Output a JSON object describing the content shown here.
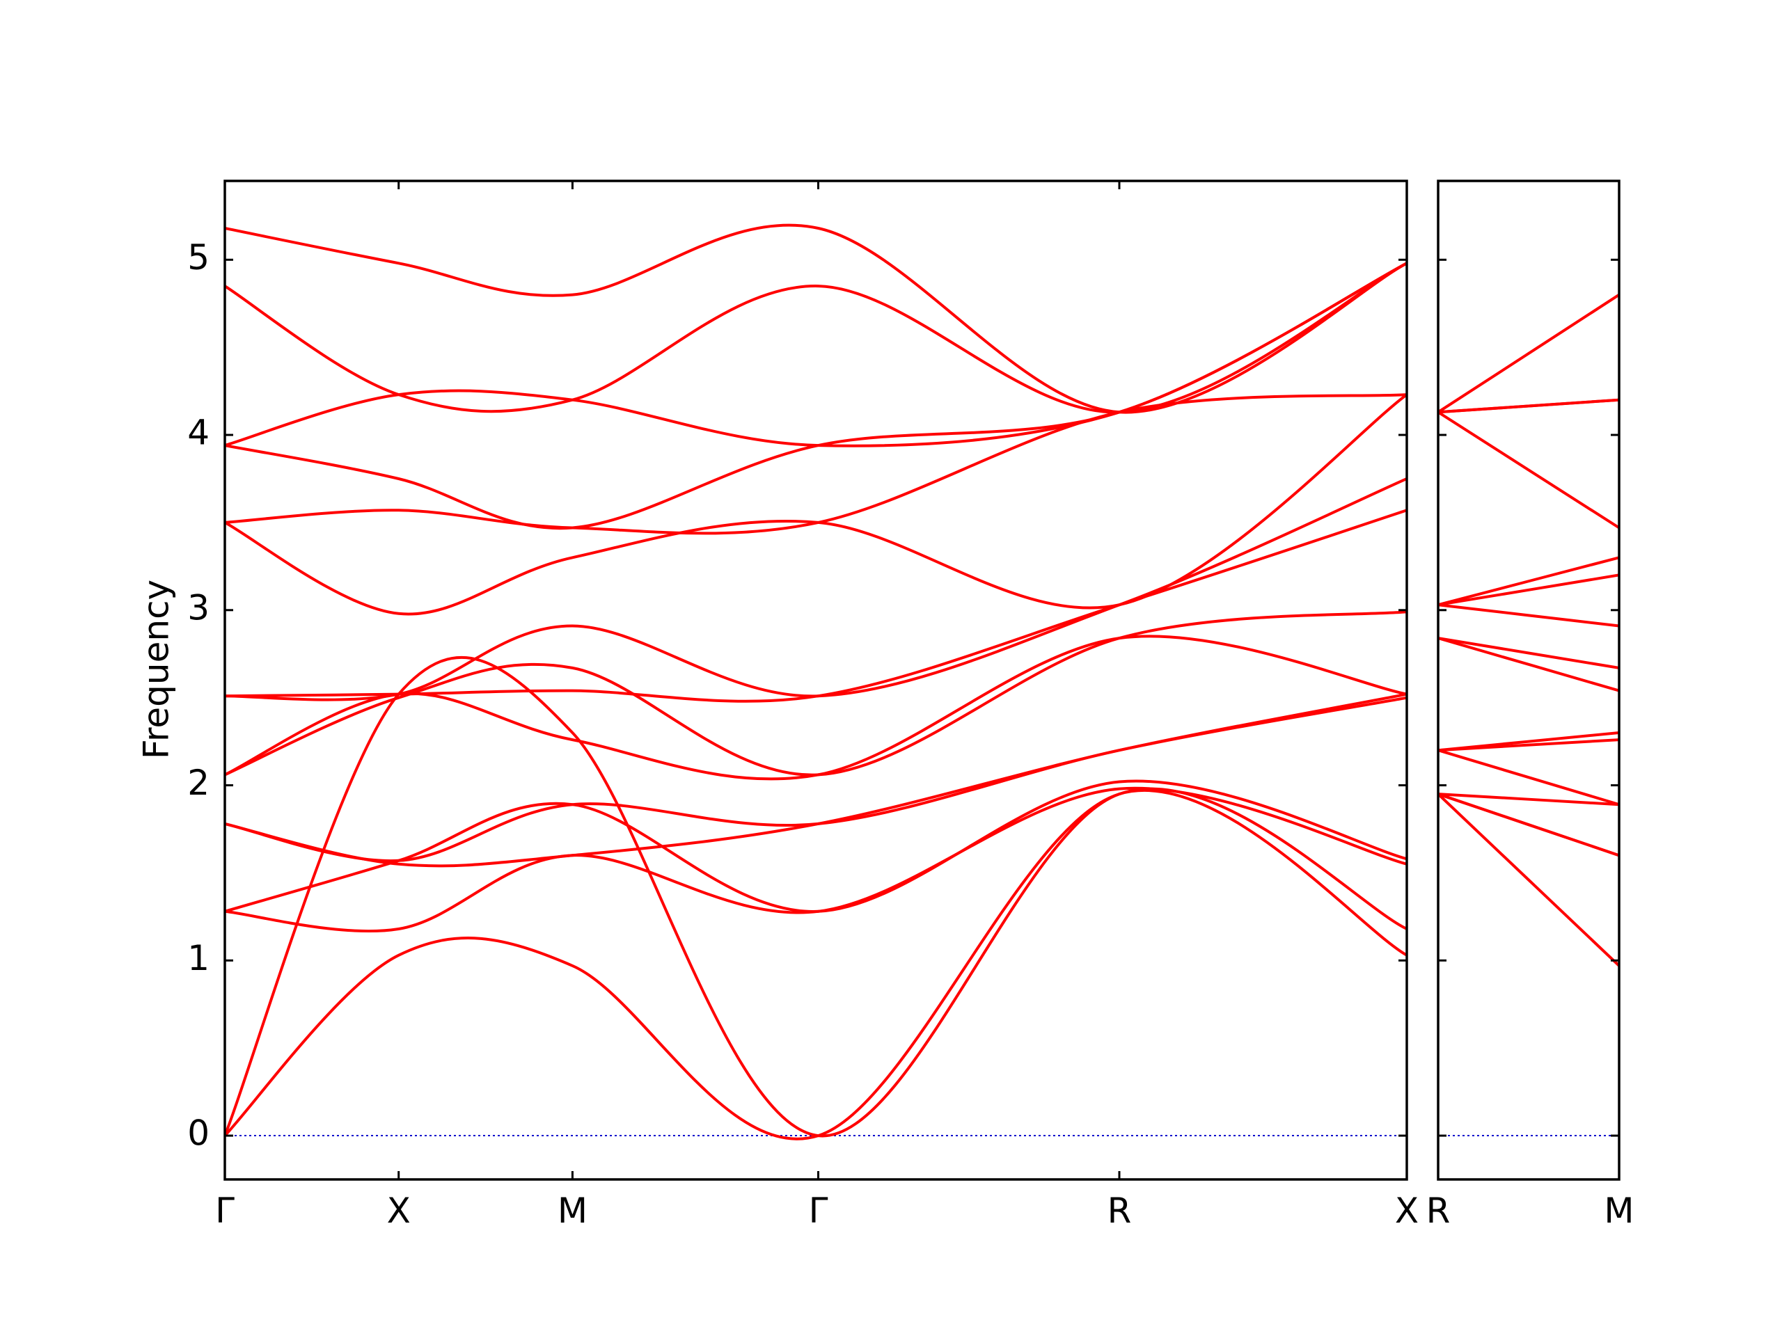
{
  "chart_data": {
    "type": "line",
    "title": "",
    "xlabel": "",
    "ylabel": "Frequency",
    "ylim": [
      -0.25,
      5.45
    ],
    "yticks": [
      0,
      1,
      2,
      3,
      4,
      5
    ],
    "ytick_labels": [
      "0",
      "1",
      "2",
      "3",
      "4",
      "5"
    ],
    "grid": false,
    "legend": "none",
    "colors": {
      "bands": "#ff0000",
      "zero_line": "#0000cc",
      "axes": "#000000"
    },
    "panels": [
      {
        "name": "path-1",
        "xrange": [
          0,
          3.4
        ],
        "kpoints": [
          {
            "label": "Γ",
            "x": 0
          },
          {
            "label": "X",
            "x": 0.5
          },
          {
            "label": "M",
            "x": 1.0
          },
          {
            "label": "Γ",
            "x": 1.707
          },
          {
            "label": "R",
            "x": 2.573
          },
          {
            "label": "X",
            "x": 3.4
          }
        ],
        "bands": [
          {
            "x": [
              0,
              0.5,
              1.0,
              1.707,
              2.573,
              3.4
            ],
            "y": [
              0,
              1.03,
              0.97,
              0,
              1.95,
              1.03
            ]
          },
          {
            "x": [
              0,
              0.5,
              1.0,
              1.707,
              2.573,
              3.4
            ],
            "y": [
              0,
              2.52,
              2.3,
              0,
              1.95,
              1.18
            ]
          },
          {
            "x": [
              0,
              0.5,
              1.0,
              1.707,
              2.573,
              3.4
            ],
            "y": [
              1.28,
              1.18,
              1.6,
              1.28,
              1.98,
              1.55
            ]
          },
          {
            "x": [
              0,
              0.5,
              1.0,
              1.707,
              2.573,
              3.4
            ],
            "y": [
              1.28,
              1.57,
              1.89,
              1.28,
              2.02,
              1.58
            ]
          },
          {
            "x": [
              0,
              0.5,
              1.0,
              1.707,
              2.573,
              3.4
            ],
            "y": [
              1.78,
              1.57,
              1.89,
              1.78,
              2.2,
              2.5
            ]
          },
          {
            "x": [
              0,
              0.5,
              1.0,
              1.707,
              2.573,
              3.4
            ],
            "y": [
              1.78,
              1.55,
              1.6,
              1.78,
              2.2,
              2.52
            ]
          },
          {
            "x": [
              0,
              0.5,
              1.0,
              1.707,
              2.573,
              3.4
            ],
            "y": [
              2.06,
              2.52,
              2.26,
              2.06,
              2.84,
              2.52
            ]
          },
          {
            "x": [
              0,
              0.5,
              1.0,
              1.707,
              2.573,
              3.4
            ],
            "y": [
              2.06,
              2.5,
              2.67,
              2.06,
              2.84,
              2.99
            ]
          },
          {
            "x": [
              0,
              0.5,
              1.0,
              1.707,
              2.573,
              3.4
            ],
            "y": [
              2.51,
              2.52,
              2.54,
              2.51,
              3.03,
              3.57
            ]
          },
          {
            "x": [
              0,
              0.5,
              1.0,
              1.707,
              2.573,
              3.4
            ],
            "y": [
              2.51,
              2.52,
              2.91,
              2.51,
              3.03,
              3.75
            ]
          },
          {
            "x": [
              0,
              0.5,
              1.0,
              1.707,
              2.573,
              3.4
            ],
            "y": [
              3.5,
              2.98,
              3.3,
              3.5,
              3.03,
              4.23
            ]
          },
          {
            "x": [
              0,
              0.5,
              1.0,
              1.707,
              2.573,
              3.4
            ],
            "y": [
              3.5,
              3.57,
              3.47,
              3.5,
              4.13,
              4.23
            ]
          },
          {
            "x": [
              0,
              0.5,
              1.0,
              1.707,
              2.573,
              3.4
            ],
            "y": [
              3.94,
              3.75,
              3.47,
              3.94,
              4.13,
              4.98
            ]
          },
          {
            "x": [
              0,
              0.5,
              1.0,
              1.707,
              2.573,
              3.4
            ],
            "y": [
              3.94,
              4.23,
              4.2,
              3.94,
              4.13,
              4.98
            ]
          },
          {
            "x": [
              0,
              0.5,
              1.0,
              1.707,
              2.573,
              3.4
            ],
            "y": [
              4.85,
              4.23,
              4.2,
              4.85,
              4.13,
              4.98
            ]
          },
          {
            "x": [
              0,
              0.5,
              1.0,
              1.707,
              2.573,
              3.4
            ],
            "y": [
              5.18,
              4.98,
              4.8,
              5.18,
              4.13,
              4.98
            ]
          }
        ]
      },
      {
        "name": "path-2",
        "xrange": [
          0,
          0.5
        ],
        "kpoints": [
          {
            "label": "R",
            "x": 0
          },
          {
            "label": "M",
            "x": 0.5
          }
        ],
        "bands": [
          {
            "x": [
              0,
              0.5
            ],
            "y": [
              1.95,
              0.97
            ]
          },
          {
            "x": [
              0,
              0.5
            ],
            "y": [
              1.95,
              1.6
            ]
          },
          {
            "x": [
              0,
              0.5
            ],
            "y": [
              1.95,
              1.6
            ]
          },
          {
            "x": [
              0,
              0.5
            ],
            "y": [
              1.95,
              1.89
            ]
          },
          {
            "x": [
              0,
              0.5
            ],
            "y": [
              2.2,
              1.89
            ]
          },
          {
            "x": [
              0,
              0.5
            ],
            "y": [
              2.2,
              2.26
            ]
          },
          {
            "x": [
              0,
              0.5
            ],
            "y": [
              2.2,
              2.3
            ]
          },
          {
            "x": [
              0,
              0.5
            ],
            "y": [
              2.84,
              2.54
            ]
          },
          {
            "x": [
              0,
              0.5
            ],
            "y": [
              2.84,
              2.67
            ]
          },
          {
            "x": [
              0,
              0.5
            ],
            "y": [
              3.03,
              2.91
            ]
          },
          {
            "x": [
              0,
              0.5
            ],
            "y": [
              3.03,
              3.2
            ]
          },
          {
            "x": [
              0,
              0.5
            ],
            "y": [
              3.03,
              3.3
            ]
          },
          {
            "x": [
              0,
              0.5
            ],
            "y": [
              4.13,
              3.47
            ]
          },
          {
            "x": [
              0,
              0.5
            ],
            "y": [
              4.13,
              4.2
            ]
          },
          {
            "x": [
              0,
              0.5
            ],
            "y": [
              4.13,
              4.2
            ]
          },
          {
            "x": [
              0,
              0.5
            ],
            "y": [
              4.13,
              4.8
            ]
          }
        ]
      }
    ]
  }
}
